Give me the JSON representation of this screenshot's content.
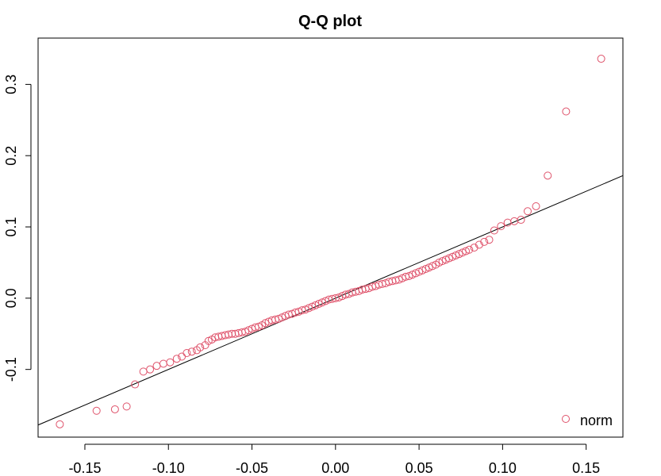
{
  "chart_data": {
    "type": "scatter",
    "title": "Q-Q plot",
    "xlabel": "",
    "ylabel": "",
    "xlim": [
      -0.178,
      0.172
    ],
    "ylim": [
      -0.195,
      0.365
    ],
    "xticks": [
      -0.15,
      -0.1,
      -0.05,
      0.0,
      0.05,
      0.1,
      0.15
    ],
    "xtick_labels": [
      "-0.15",
      "-0.10",
      "-0.05",
      "0.00",
      "0.05",
      "0.10",
      "0.15"
    ],
    "yticks": [
      -0.1,
      0.0,
      0.1,
      0.2,
      0.3
    ],
    "ytick_labels": [
      "-0.1",
      "0.0",
      "0.1",
      "0.2",
      "0.3"
    ],
    "grid": false,
    "legend": {
      "position": "bottom-right",
      "entries": [
        {
          "label": "norm",
          "color": "#DF536B",
          "marker": "open-circle"
        }
      ]
    },
    "reference_line": {
      "slope": 1.0,
      "intercept": 0.0,
      "color": "#000000"
    },
    "series": [
      {
        "name": "norm",
        "color": "#DF536B",
        "marker": "open-circle",
        "x": [
          -0.165,
          -0.143,
          -0.132,
          -0.125,
          -0.12,
          -0.115,
          -0.111,
          -0.107,
          -0.103,
          -0.099,
          -0.095,
          -0.092,
          -0.089,
          -0.086,
          -0.083,
          -0.081,
          -0.078,
          -0.076,
          -0.074,
          -0.072,
          -0.07,
          -0.068,
          -0.066,
          -0.064,
          -0.062,
          -0.06,
          -0.058,
          -0.056,
          -0.054,
          -0.052,
          -0.05,
          -0.048,
          -0.046,
          -0.044,
          -0.042,
          -0.04,
          -0.038,
          -0.036,
          -0.034,
          -0.032,
          -0.03,
          -0.028,
          -0.026,
          -0.024,
          -0.022,
          -0.02,
          -0.018,
          -0.016,
          -0.014,
          -0.012,
          -0.01,
          -0.008,
          -0.006,
          -0.004,
          -0.002,
          0.0,
          0.002,
          0.004,
          0.006,
          0.008,
          0.01,
          0.012,
          0.014,
          0.016,
          0.018,
          0.02,
          0.022,
          0.024,
          0.026,
          0.028,
          0.03,
          0.032,
          0.034,
          0.036,
          0.038,
          0.04,
          0.042,
          0.044,
          0.046,
          0.048,
          0.05,
          0.052,
          0.054,
          0.056,
          0.058,
          0.06,
          0.062,
          0.064,
          0.066,
          0.068,
          0.07,
          0.072,
          0.074,
          0.076,
          0.078,
          0.08,
          0.083,
          0.086,
          0.089,
          0.092,
          0.095,
          0.099,
          0.103,
          0.107,
          0.111,
          0.115,
          0.12,
          0.127,
          0.138,
          0.159
        ],
        "y": [
          -0.177,
          -0.158,
          -0.156,
          -0.152,
          -0.121,
          -0.103,
          -0.1,
          -0.095,
          -0.092,
          -0.09,
          -0.085,
          -0.082,
          -0.077,
          -0.075,
          -0.073,
          -0.069,
          -0.066,
          -0.06,
          -0.058,
          -0.055,
          -0.054,
          -0.053,
          -0.052,
          -0.051,
          -0.05,
          -0.05,
          -0.049,
          -0.048,
          -0.047,
          -0.045,
          -0.043,
          -0.041,
          -0.04,
          -0.038,
          -0.035,
          -0.033,
          -0.031,
          -0.03,
          -0.029,
          -0.027,
          -0.025,
          -0.023,
          -0.022,
          -0.02,
          -0.019,
          -0.017,
          -0.016,
          -0.014,
          -0.012,
          -0.01,
          -0.008,
          -0.006,
          -0.004,
          -0.002,
          -0.001,
          0.0,
          0.001,
          0.003,
          0.005,
          0.006,
          0.008,
          0.009,
          0.01,
          0.012,
          0.013,
          0.014,
          0.016,
          0.017,
          0.019,
          0.02,
          0.021,
          0.023,
          0.024,
          0.025,
          0.026,
          0.028,
          0.03,
          0.031,
          0.033,
          0.035,
          0.037,
          0.039,
          0.041,
          0.043,
          0.045,
          0.047,
          0.05,
          0.052,
          0.054,
          0.056,
          0.058,
          0.06,
          0.062,
          0.064,
          0.066,
          0.068,
          0.071,
          0.075,
          0.079,
          0.082,
          0.095,
          0.101,
          0.106,
          0.108,
          0.11,
          0.122,
          0.129,
          0.172,
          0.262,
          0.336
        ]
      }
    ]
  }
}
